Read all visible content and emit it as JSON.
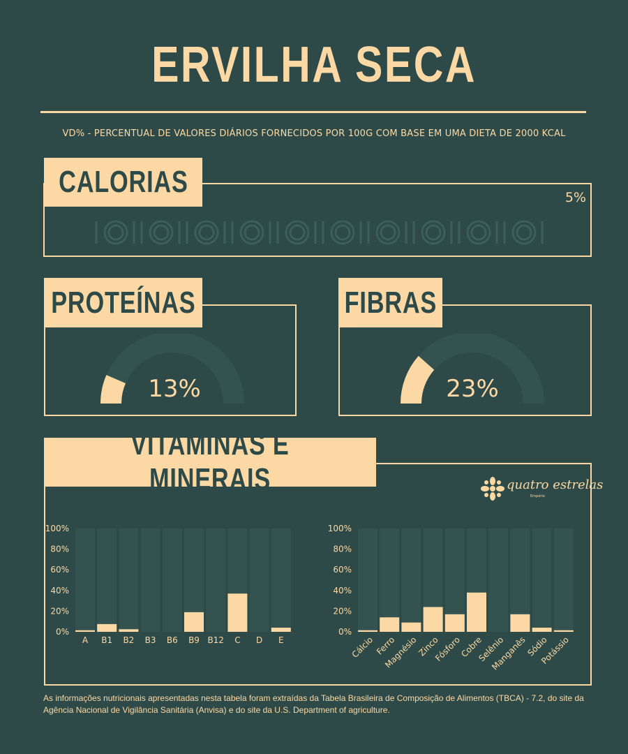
{
  "title": "ERVILHA SECA",
  "subtitle": "VD% - PERCENTUAL DE VALORES DIÁRIOS FORNECIDOS POR 100G COM BASE EM UMA DIETA DE 2000 KCAL",
  "calorias": {
    "label": "CALORIAS",
    "value_text": "5%",
    "value": 5
  },
  "proteinas": {
    "label": "PROTEÍNAS",
    "value_text": "13%",
    "value": 13
  },
  "fibras": {
    "label": "FIBRAS",
    "value_text": "23%",
    "value": 23
  },
  "vitaminas": {
    "label": "VITAMINAS E MINERAIS"
  },
  "logo": {
    "text": "quatro estrelas",
    "sub": "Empório"
  },
  "colors": {
    "background": "#2d4a48",
    "accent": "#fcd9a4",
    "track": "#34524f"
  },
  "chart_data": [
    {
      "type": "bar",
      "categories": [
        "A",
        "B1",
        "B2",
        "B3",
        "B6",
        "B9",
        "B12",
        "C",
        "D",
        "E"
      ],
      "values": [
        1.5,
        7.5,
        2.5,
        0,
        0,
        19,
        0,
        37,
        0,
        4
      ],
      "ylim": [
        0,
        100
      ],
      "yticks": [
        "0%",
        "20%",
        "40%",
        "60%",
        "80%",
        "100%"
      ],
      "background_bars": true
    },
    {
      "type": "bar",
      "categories": [
        "Cálcio",
        "Ferro",
        "Magnésio",
        "Zinco",
        "Fósforo",
        "Cobre",
        "Selênio",
        "Manganês",
        "Sódio",
        "Potássio"
      ],
      "values": [
        1.5,
        14,
        9,
        24,
        17,
        38,
        0,
        17,
        4,
        1.5
      ],
      "ylim": [
        0,
        100
      ],
      "yticks": [
        "0%",
        "20%",
        "40%",
        "60%",
        "80%",
        "100%"
      ],
      "background_bars": true
    }
  ],
  "footer": "As informações nutricionais apresentadas nesta tabela foram extraídas da Tabela Brasileira de Composição de Alimentos (TBCA) - 7.2, do site da Agência Nacional de Vigilância Sanitária (Anvisa) e do site da U.S. Department of agriculture."
}
